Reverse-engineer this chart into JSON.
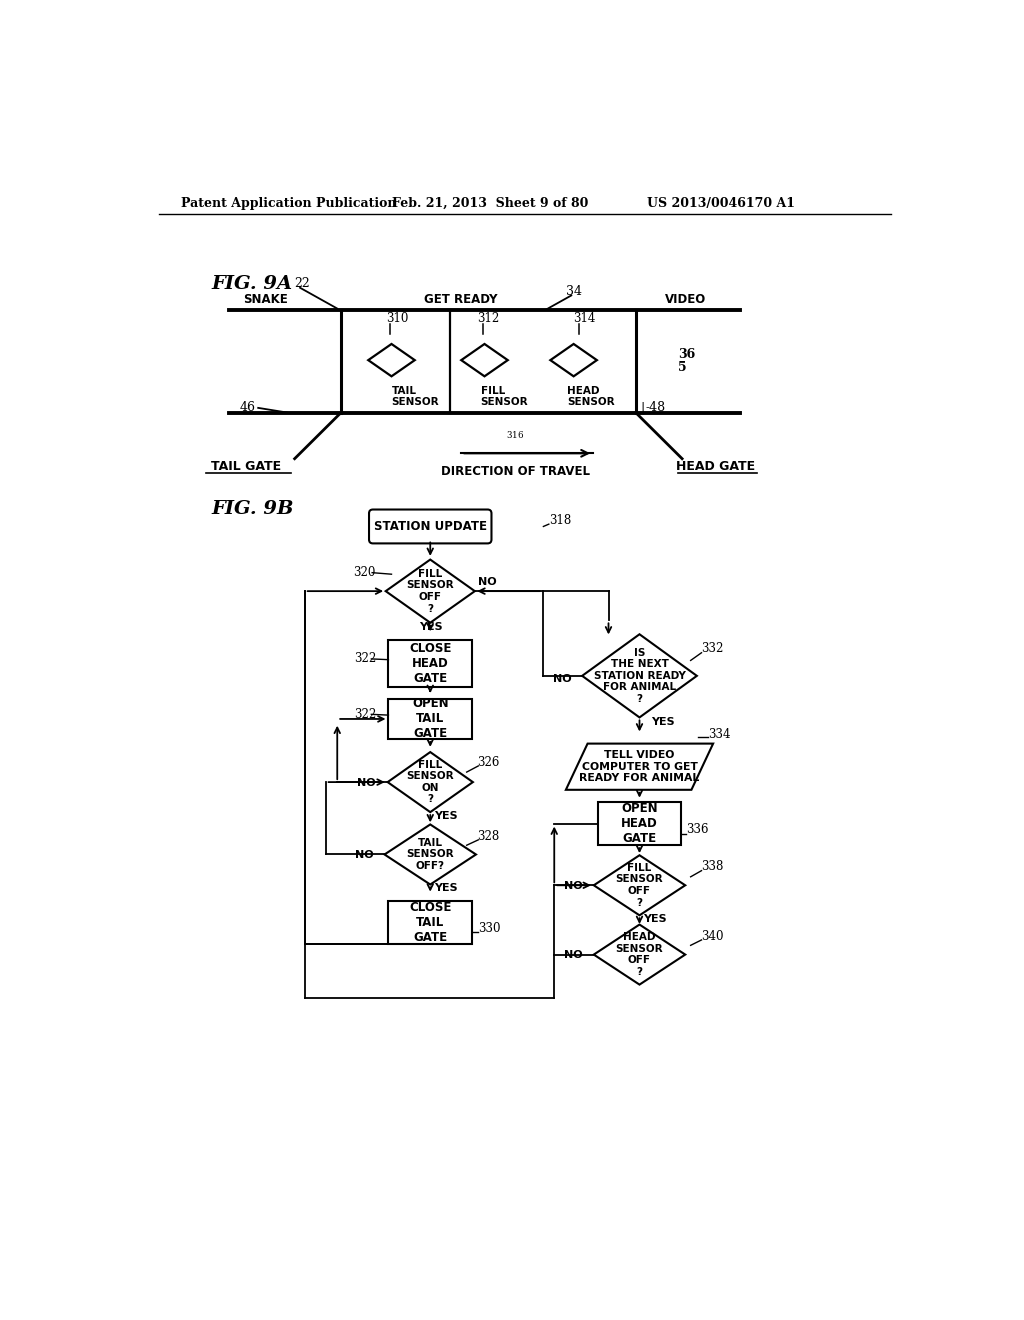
{
  "bg_color": "#ffffff",
  "header_left": "Patent Application Publication",
  "header_mid": "Feb. 21, 2013  Sheet 9 of 80",
  "header_right": "US 2013/0046170 A1"
}
